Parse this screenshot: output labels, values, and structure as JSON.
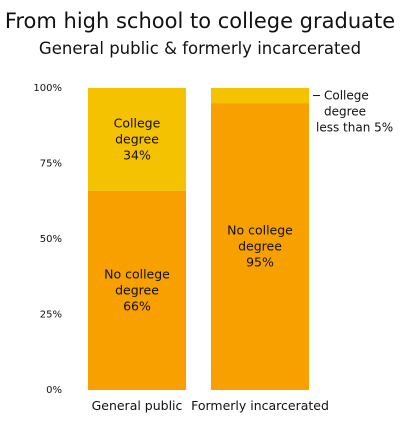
{
  "title": "From high school to college graduate",
  "subtitle": "General public & formerly incarcerated",
  "chart_data": {
    "type": "bar",
    "stacked": true,
    "categories": [
      "General public",
      "Formerly incarcerated"
    ],
    "series": [
      {
        "values": [
          66,
          95
        ],
        "color": "#f7a000",
        "labels": [
          [
            "No college",
            "degree",
            "66%"
          ],
          [
            "No college",
            "degree",
            "95%"
          ]
        ]
      },
      {
        "values": [
          34,
          5
        ],
        "color": "#f4c200",
        "labels": [
          [
            "College",
            "degree",
            "34%"
          ],
          []
        ]
      }
    ],
    "annotation": [
      "College",
      "degree",
      "less than 5%"
    ],
    "yticks": [
      {
        "value": 0,
        "label": "0%"
      },
      {
        "value": 25,
        "label": "25%"
      },
      {
        "value": 50,
        "label": "50%"
      },
      {
        "value": 75,
        "label": "75%"
      },
      {
        "value": 100,
        "label": "100%"
      }
    ],
    "ylim": [
      0,
      100
    ],
    "grid": false,
    "legend": "none"
  }
}
